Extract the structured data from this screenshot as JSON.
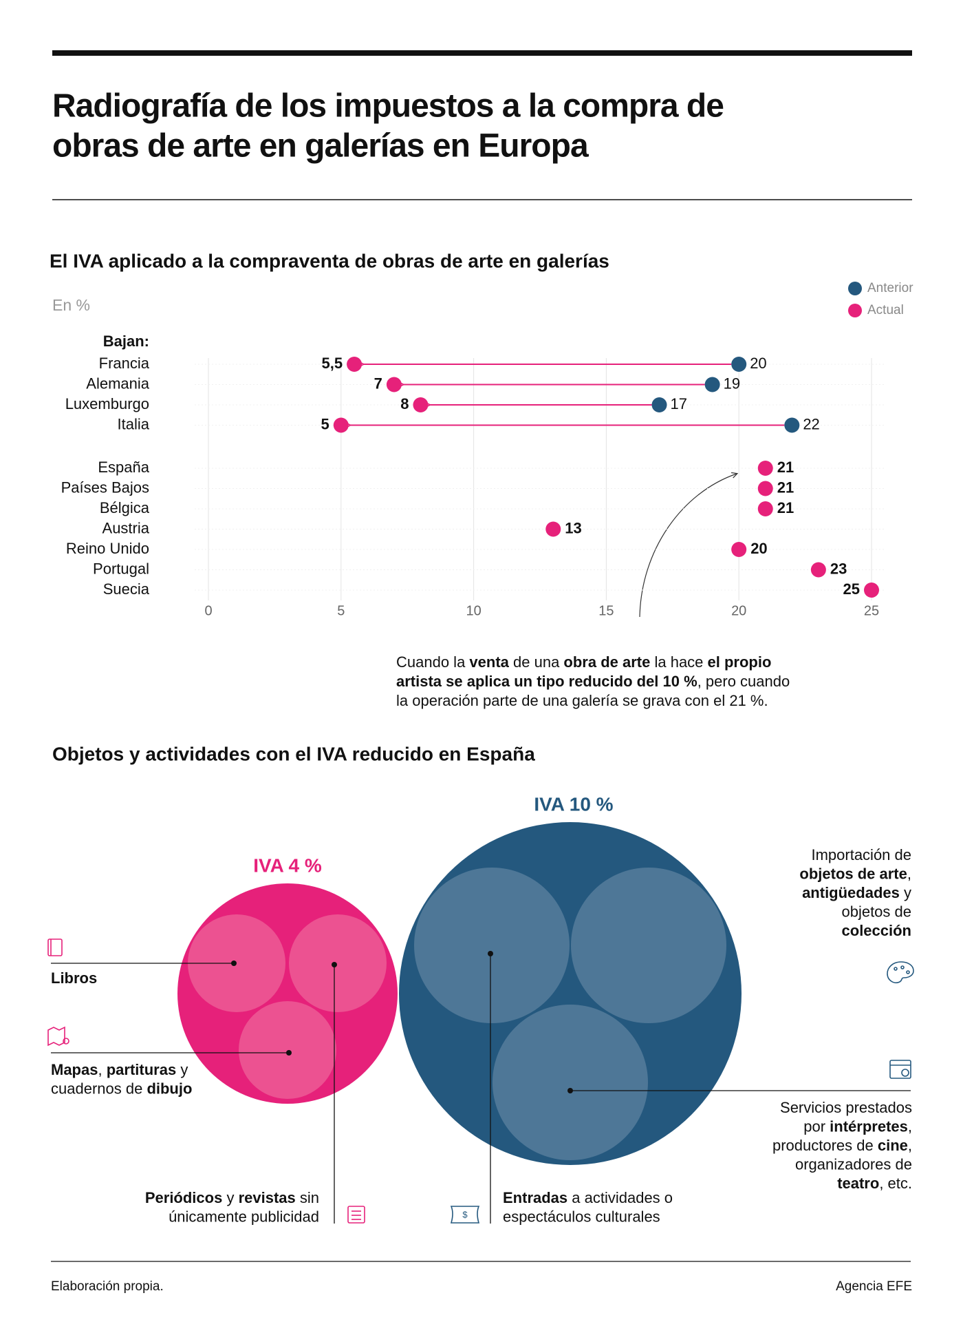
{
  "header": {
    "title": [
      "Radiografía de los impuestos a la compra de",
      "obras de arte en galerías en Europa"
    ]
  },
  "chart_data": {
    "type": "dumbbell",
    "title": "El IVA aplicado a la compraventa de obras de arte en galerías",
    "subtitle": "En %",
    "group_label": "Bajan:",
    "categories": [
      "Francia",
      "Alemania",
      "Luxemburgo",
      "Italia",
      "España",
      "Países Bajos",
      "Bélgica",
      "Austria",
      "Reino Unido",
      "Portugal",
      "Suecia"
    ],
    "series": [
      {
        "name": "Anterior",
        "color": "#24587e",
        "values": [
          20,
          19,
          17,
          22,
          null,
          null,
          null,
          null,
          null,
          null,
          null
        ]
      },
      {
        "name": "Actual",
        "color": "#e6217a",
        "values": [
          5.5,
          7,
          8,
          5,
          21,
          21,
          21,
          13,
          20,
          23,
          25
        ],
        "value_labels": [
          "5,5",
          "7",
          "8",
          "5",
          "21",
          "21",
          "21",
          "13",
          "20",
          "23",
          "25"
        ]
      }
    ],
    "xlim": [
      0,
      25
    ],
    "xticks": [
      0,
      5,
      10,
      15,
      20,
      25
    ],
    "grid": true,
    "legend": "top-right"
  },
  "annotation": [
    [
      "Cuando la ",
      "venta",
      " de una ",
      "obra de arte",
      " la hace ",
      "el propio"
    ],
    [
      "artista se aplica un tipo reducido del 10 %",
      ", pero cuando"
    ],
    [
      "la operación parte de una galería se grava con el 21 %."
    ]
  ],
  "diagram": {
    "title": "Objetos y actividades con el IVA reducido en España",
    "groups": [
      {
        "label": "IVA 4 %",
        "items": [
          {
            "lines": [
              [
                "Libros"
              ]
            ]
          },
          {
            "lines": [
              [
                "Mapas",
                ", ",
                "partituras",
                " y"
              ],
              [
                "cuadernos de ",
                "dibujo"
              ]
            ]
          },
          {
            "lines": [
              [
                "Periódicos",
                " y ",
                "revistas",
                " sin"
              ],
              [
                "únicamente publicidad"
              ]
            ]
          }
        ]
      },
      {
        "label": "IVA 10 %",
        "items": [
          {
            "lines": [
              [
                "Entradas",
                " a actividades o"
              ],
              [
                "espectáculos culturales"
              ]
            ]
          },
          {
            "lines": [
              [
                "Importación de"
              ],
              [
                "objetos de arte",
                ","
              ],
              [
                "antigüedades",
                " y"
              ],
              [
                "objetos de"
              ],
              [
                "colección"
              ]
            ]
          },
          {
            "lines": [
              [
                "Servicios prestados"
              ],
              [
                "por ",
                "intérpretes",
                ","
              ],
              [
                "productores de ",
                "cine",
                ","
              ],
              [
                "organizadores de"
              ],
              [
                "teatro",
                ", etc."
              ]
            ]
          }
        ]
      }
    ]
  },
  "footer": {
    "source": "Elaboración propia.",
    "credit": "Agencia EFE"
  }
}
